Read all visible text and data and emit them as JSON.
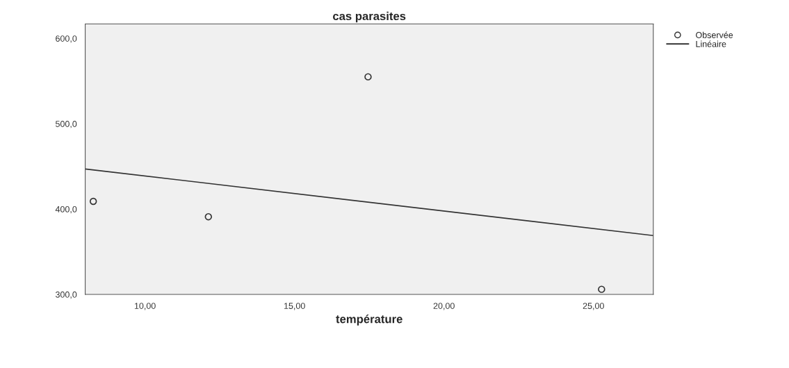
{
  "chart_data": {
    "type": "scatter",
    "title": "cas parasites",
    "xlabel": "température",
    "xlim": [
      8,
      27
    ],
    "ylim": [
      300,
      617
    ],
    "xticks": [
      {
        "value": 10,
        "label": "10,00"
      },
      {
        "value": 15,
        "label": "15,00"
      },
      {
        "value": 20,
        "label": "20,00"
      },
      {
        "value": 25,
        "label": "25,00"
      }
    ],
    "yticks": [
      {
        "value": 300,
        "label": "300,0"
      },
      {
        "value": 400,
        "label": "400,0"
      },
      {
        "value": 500,
        "label": "500,0"
      },
      {
        "value": 600,
        "label": "600,0"
      }
    ],
    "series": [
      {
        "name": "Observée",
        "marker": "circle",
        "color": "#333333",
        "x": [
          8.27,
          12.12,
          17.46,
          25.27
        ],
        "values": [
          409,
          391,
          555,
          306
        ]
      },
      {
        "name": "Linéaire",
        "type": "line",
        "color": "#333333",
        "x": [
          8,
          27
        ],
        "values": [
          447,
          369
        ]
      }
    ],
    "grid": false,
    "legend": "top right"
  }
}
